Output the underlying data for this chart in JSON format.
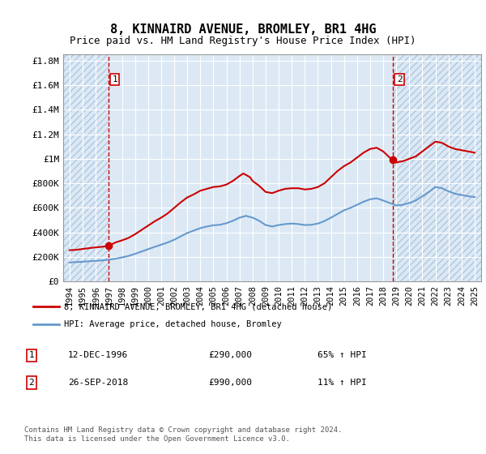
{
  "title": "8, KINNAIRD AVENUE, BROMLEY, BR1 4HG",
  "subtitle": "Price paid vs. HM Land Registry's House Price Index (HPI)",
  "legend_line1": "8, KINNAIRD AVENUE, BROMLEY, BR1 4HG (detached house)",
  "legend_line2": "HPI: Average price, detached house, Bromley",
  "transaction1_label": "1",
  "transaction1_date": "12-DEC-1996",
  "transaction1_price": 290000,
  "transaction1_pct": "65% ↑ HPI",
  "transaction2_label": "2",
  "transaction2_date": "26-SEP-2018",
  "transaction2_price": 990000,
  "transaction2_pct": "11% ↑ HPI",
  "footer": "Contains HM Land Registry data © Crown copyright and database right 2024.\nThis data is licensed under the Open Government Licence v3.0.",
  "ylim": [
    0,
    1850000
  ],
  "yticks": [
    0,
    200000,
    400000,
    600000,
    800000,
    1000000,
    1200000,
    1400000,
    1600000,
    1800000
  ],
  "ytick_labels": [
    "£0",
    "£200K",
    "£400K",
    "£600K",
    "£800K",
    "£1M",
    "£1.2M",
    "£1.4M",
    "£1.6M",
    "£1.8M"
  ],
  "bg_color": "#dce9f5",
  "hatch_color": "#b0c8e0",
  "grid_color": "#ffffff",
  "red_color": "#cc0000",
  "blue_color": "#6699cc",
  "transaction1_year": 1996.95,
  "transaction2_year": 2018.73,
  "xlim_left": 1993.5,
  "xlim_right": 2025.5,
  "xticks": [
    1994,
    1995,
    1996,
    1997,
    1998,
    1999,
    2000,
    2001,
    2002,
    2003,
    2004,
    2005,
    2006,
    2007,
    2008,
    2009,
    2010,
    2011,
    2012,
    2013,
    2014,
    2015,
    2016,
    2017,
    2018,
    2019,
    2020,
    2021,
    2022,
    2023,
    2024,
    2025
  ],
  "red_hpi_x": [
    1994.0,
    1994.5,
    1995.0,
    1995.5,
    1996.0,
    1996.5,
    1996.95,
    1997.2,
    1997.5,
    1998.0,
    1998.5,
    1999.0,
    1999.5,
    2000.0,
    2000.5,
    2001.0,
    2001.5,
    2002.0,
    2002.5,
    2003.0,
    2003.5,
    2004.0,
    2004.5,
    2005.0,
    2005.5,
    2006.0,
    2006.5,
    2007.0,
    2007.3,
    2007.8,
    2008.0,
    2008.5,
    2009.0,
    2009.5,
    2010.0,
    2010.5,
    2011.0,
    2011.5,
    2012.0,
    2012.5,
    2013.0,
    2013.5,
    2014.0,
    2014.5,
    2015.0,
    2015.5,
    2016.0,
    2016.5,
    2017.0,
    2017.5,
    2018.0,
    2018.5,
    2018.73,
    2019.0,
    2019.5,
    2020.0,
    2020.5,
    2021.0,
    2021.5,
    2022.0,
    2022.5,
    2023.0,
    2023.5,
    2024.0,
    2024.5,
    2025.0
  ],
  "red_hpi_y": [
    255000,
    258000,
    265000,
    272000,
    278000,
    283000,
    290000,
    302000,
    318000,
    335000,
    355000,
    385000,
    420000,
    455000,
    490000,
    520000,
    555000,
    600000,
    645000,
    685000,
    710000,
    740000,
    755000,
    770000,
    775000,
    790000,
    820000,
    860000,
    880000,
    850000,
    820000,
    780000,
    730000,
    720000,
    740000,
    755000,
    760000,
    760000,
    750000,
    755000,
    770000,
    800000,
    850000,
    900000,
    940000,
    970000,
    1010000,
    1050000,
    1080000,
    1090000,
    1060000,
    1010000,
    990000,
    970000,
    980000,
    1000000,
    1020000,
    1060000,
    1100000,
    1140000,
    1130000,
    1100000,
    1080000,
    1070000,
    1060000,
    1050000
  ],
  "blue_hpi_x": [
    1994.0,
    1994.5,
    1995.0,
    1995.5,
    1996.0,
    1996.5,
    1997.0,
    1997.5,
    1998.0,
    1998.5,
    1999.0,
    1999.5,
    2000.0,
    2000.5,
    2001.0,
    2001.5,
    2002.0,
    2002.5,
    2003.0,
    2003.5,
    2004.0,
    2004.5,
    2005.0,
    2005.5,
    2006.0,
    2006.5,
    2007.0,
    2007.5,
    2008.0,
    2008.5,
    2009.0,
    2009.5,
    2010.0,
    2010.5,
    2011.0,
    2011.5,
    2012.0,
    2012.5,
    2013.0,
    2013.5,
    2014.0,
    2014.5,
    2015.0,
    2015.5,
    2016.0,
    2016.5,
    2017.0,
    2017.5,
    2018.0,
    2018.5,
    2019.0,
    2019.5,
    2020.0,
    2020.5,
    2021.0,
    2021.5,
    2022.0,
    2022.5,
    2023.0,
    2023.5,
    2024.0,
    2024.5,
    2025.0
  ],
  "blue_hpi_y": [
    155000,
    158000,
    161000,
    165000,
    168000,
    172000,
    178000,
    185000,
    196000,
    208000,
    225000,
    244000,
    263000,
    282000,
    300000,
    318000,
    340000,
    368000,
    395000,
    415000,
    435000,
    448000,
    458000,
    462000,
    475000,
    495000,
    520000,
    535000,
    520000,
    495000,
    460000,
    448000,
    460000,
    468000,
    472000,
    468000,
    460000,
    462000,
    472000,
    492000,
    520000,
    550000,
    580000,
    600000,
    625000,
    650000,
    670000,
    678000,
    660000,
    640000,
    620000,
    625000,
    640000,
    660000,
    695000,
    730000,
    770000,
    760000,
    735000,
    715000,
    705000,
    695000,
    688000
  ]
}
